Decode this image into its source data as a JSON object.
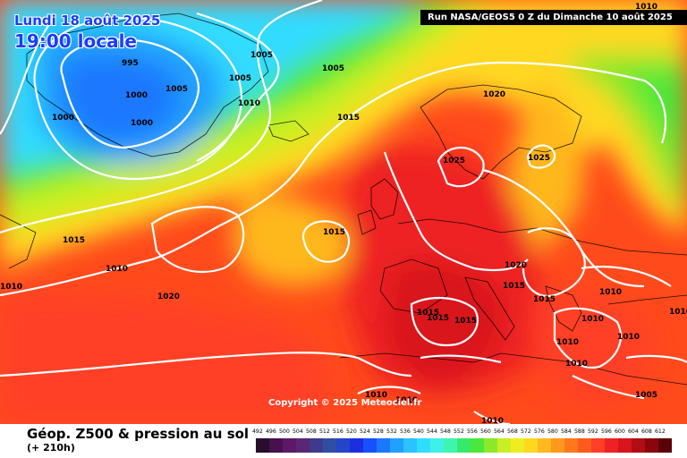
{
  "header": {
    "date": "Lundi 18 août 2025",
    "time": "19:00 locale",
    "run": "Run NASA/GEOS5 0 Z du Dimanche 10 août 2025"
  },
  "copyright": "Copyright © 2025 Meteociel.fr",
  "footer": {
    "title": "Géop. Z500 & pression au sol",
    "subtitle": "(+ 210h)"
  },
  "legend": {
    "values": [
      "492",
      "496",
      "500",
      "504",
      "508",
      "512",
      "516",
      "520",
      "524",
      "528",
      "532",
      "536",
      "540",
      "544",
      "548",
      "552",
      "556",
      "560",
      "564",
      "568",
      "572",
      "576",
      "580",
      "584",
      "588",
      "592",
      "596",
      "600",
      "604",
      "608",
      "612"
    ],
    "colors": [
      "#2a0c2f",
      "#47104f",
      "#5e1868",
      "#5a2676",
      "#403a8c",
      "#2f4fa3",
      "#2445c8",
      "#1b2ee0",
      "#1650ff",
      "#1a78ff",
      "#21a0ff",
      "#2bc2ff",
      "#30dcff",
      "#3ef0e8",
      "#3ef5b0",
      "#35ea6a",
      "#4ae83a",
      "#8ce82a",
      "#c8ef24",
      "#eeed22",
      "#ffd820",
      "#ffb81e",
      "#ff981c",
      "#ff781b",
      "#ff5a1c",
      "#ff3f26",
      "#ee2224",
      "#d8141c",
      "#b20c14",
      "#8a060c",
      "#5a0206"
    ]
  },
  "isobars": [
    {
      "label": "995"
    },
    {
      "label": "1000"
    },
    {
      "label": "1000"
    },
    {
      "label": "1000"
    },
    {
      "label": "1005"
    },
    {
      "label": "1005"
    },
    {
      "label": "1005"
    },
    {
      "label": "1005"
    },
    {
      "label": "1010"
    },
    {
      "label": "1015"
    },
    {
      "label": "1020"
    },
    {
      "label": "1025"
    },
    {
      "label": "1025"
    },
    {
      "label": "1015"
    },
    {
      "label": "1015"
    },
    {
      "label": "1010"
    },
    {
      "label": "1010"
    },
    {
      "label": "1020"
    },
    {
      "label": "1020"
    },
    {
      "label": "1015"
    },
    {
      "label": "1015"
    },
    {
      "label": "1015"
    },
    {
      "label": "1015"
    },
    {
      "label": "1015"
    },
    {
      "label": "1010"
    },
    {
      "label": "1010"
    },
    {
      "label": "1010"
    },
    {
      "label": "1010"
    },
    {
      "label": "1010"
    },
    {
      "label": "1010"
    },
    {
      "label": "1005"
    },
    {
      "label": "1010"
    },
    {
      "label": "1010"
    },
    {
      "label": "1010"
    },
    {
      "label": "1010"
    }
  ]
}
